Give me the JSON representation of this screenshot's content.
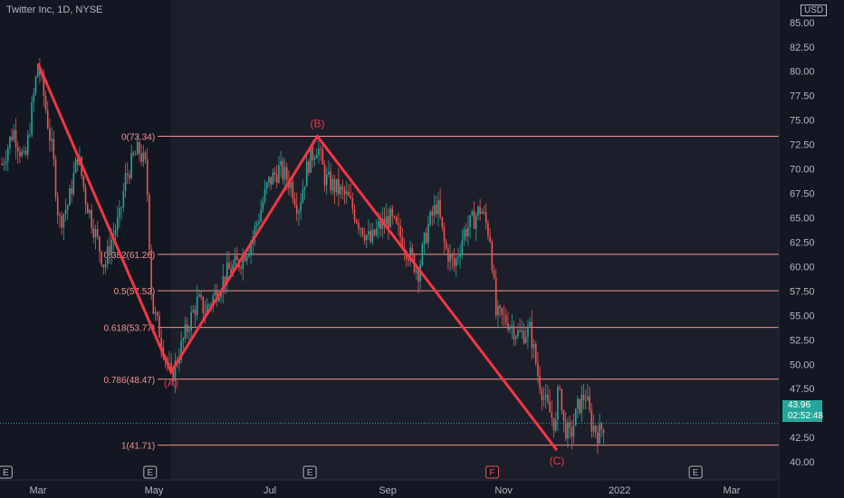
{
  "header": {
    "title": "Twitter Inc, 1D, NYSE"
  },
  "price_axis": {
    "currency": "USD"
  },
  "current_price": {
    "value": "43.96",
    "countdown": "02:52:48",
    "price": 43.96
  },
  "colors": {
    "background": "#131722",
    "fib_line": "#f5928e",
    "wave": "#f23645",
    "up": "#26a69a",
    "down": "#ef5350",
    "axis_text": "#b2b5be"
  },
  "chart_data": {
    "type": "candlestick",
    "title": "Twitter Inc, 1D, NYSE",
    "ylim": [
      36.3,
      87.3
    ],
    "y_ticks": [
      "37.50",
      "40.00",
      "42.50",
      "45.00",
      "47.50",
      "50.00",
      "52.50",
      "55.00",
      "57.50",
      "60.00",
      "62.50",
      "65.00",
      "67.50",
      "70.00",
      "72.50",
      "75.00",
      "77.50",
      "80.00",
      "82.50",
      "85.00",
      "87.50"
    ],
    "x_ticks": [
      "Mar",
      "May",
      "Jul",
      "Sep",
      "Nov",
      "2022",
      "Mar"
    ],
    "x_tick_dates": [
      "2021-03-01",
      "2021-05-01",
      "2021-07-01",
      "2021-09-01",
      "2021-11-01",
      "2022-01-01",
      "2022-03-01"
    ],
    "close_path": [
      [
        "2021-02-10",
        70.5
      ],
      [
        "2021-02-16",
        74.0
      ],
      [
        "2021-02-22",
        70.5
      ],
      [
        "2021-03-01",
        80.8
      ],
      [
        "2021-03-04",
        77.5
      ],
      [
        "2021-03-09",
        71.0
      ],
      [
        "2021-03-12",
        64.5
      ],
      [
        "2021-03-17",
        66.5
      ],
      [
        "2021-03-22",
        71.5
      ],
      [
        "2021-03-26",
        67.0
      ],
      [
        "2021-03-31",
        63.5
      ],
      [
        "2021-04-05",
        60.0
      ],
      [
        "2021-04-09",
        63.0
      ],
      [
        "2021-04-13",
        65.0
      ],
      [
        "2021-04-16",
        69.0
      ],
      [
        "2021-04-20",
        71.0
      ],
      [
        "2021-04-23",
        72.0
      ],
      [
        "2021-04-27",
        70.0
      ],
      [
        "2021-04-30",
        56.0
      ],
      [
        "2021-05-05",
        52.5
      ],
      [
        "2021-05-10",
        48.5
      ],
      [
        "2021-05-14",
        51.0
      ],
      [
        "2021-05-19",
        54.0
      ],
      [
        "2021-05-24",
        56.5
      ],
      [
        "2021-05-28",
        55.5
      ],
      [
        "2021-06-03",
        57.5
      ],
      [
        "2021-06-09",
        59.5
      ],
      [
        "2021-06-15",
        60.5
      ],
      [
        "2021-06-21",
        62.5
      ],
      [
        "2021-06-25",
        65.0
      ],
      [
        "2021-06-30",
        68.5
      ],
      [
        "2021-07-06",
        70.0
      ],
      [
        "2021-07-12",
        68.5
      ],
      [
        "2021-07-16",
        66.0
      ],
      [
        "2021-07-21",
        70.5
      ],
      [
        "2021-07-26",
        72.5
      ],
      [
        "2021-07-30",
        69.0
      ],
      [
        "2021-08-05",
        68.0
      ],
      [
        "2021-08-11",
        67.0
      ],
      [
        "2021-08-17",
        64.5
      ],
      [
        "2021-08-23",
        62.5
      ],
      [
        "2021-08-27",
        64.0
      ],
      [
        "2021-09-02",
        65.0
      ],
      [
        "2021-09-08",
        63.0
      ],
      [
        "2021-09-13",
        61.0
      ],
      [
        "2021-09-17",
        59.5
      ],
      [
        "2021-09-22",
        64.0
      ],
      [
        "2021-09-27",
        66.5
      ],
      [
        "2021-10-01",
        62.0
      ],
      [
        "2021-10-06",
        60.0
      ],
      [
        "2021-10-11",
        63.5
      ],
      [
        "2021-10-15",
        64.5
      ],
      [
        "2021-10-20",
        66.0
      ],
      [
        "2021-10-25",
        63.0
      ],
      [
        "2021-10-28",
        55.0
      ],
      [
        "2021-11-03",
        54.5
      ],
      [
        "2021-11-09",
        53.0
      ],
      [
        "2021-11-15",
        53.5
      ],
      [
        "2021-11-19",
        49.0
      ],
      [
        "2021-11-23",
        46.0
      ],
      [
        "2021-11-29",
        43.5
      ],
      [
        "2021-11-30",
        50.0
      ],
      [
        "2021-12-02",
        44.0
      ],
      [
        "2021-12-06",
        42.5
      ],
      [
        "2021-12-10",
        45.5
      ],
      [
        "2021-12-14",
        47.0
      ],
      [
        "2021-12-17",
        44.0
      ],
      [
        "2021-12-21",
        42.8
      ],
      [
        "2021-12-24",
        43.96
      ]
    ],
    "fibonacci": [
      {
        "label": "0(73.34)",
        "value": 73.34
      },
      {
        "label": "0.382(61.26)",
        "value": 61.26
      },
      {
        "label": "0.5(57.52)",
        "value": 57.52
      },
      {
        "label": "0.618(53.77)",
        "value": 53.77
      },
      {
        "label": "0.786(48.47)",
        "value": 48.47
      },
      {
        "label": "1(41.71)",
        "value": 41.71
      }
    ],
    "waves": [
      {
        "date": "2021-03-01",
        "value": 80.8,
        "label": ""
      },
      {
        "date": "2021-05-10",
        "value": 49.2,
        "label": "(A)"
      },
      {
        "date": "2021-07-26",
        "value": 73.34,
        "label": "(B)"
      },
      {
        "date": "2021-11-29",
        "value": 41.2,
        "label": "(C)"
      }
    ],
    "event_markers": [
      {
        "date": "2021-02-12",
        "label": "E"
      },
      {
        "date": "2021-04-29",
        "label": "E"
      },
      {
        "date": "2021-07-22",
        "label": "E"
      },
      {
        "date": "2021-10-26",
        "label": "F"
      },
      {
        "date": "2022-02-10",
        "label": "E"
      }
    ]
  }
}
